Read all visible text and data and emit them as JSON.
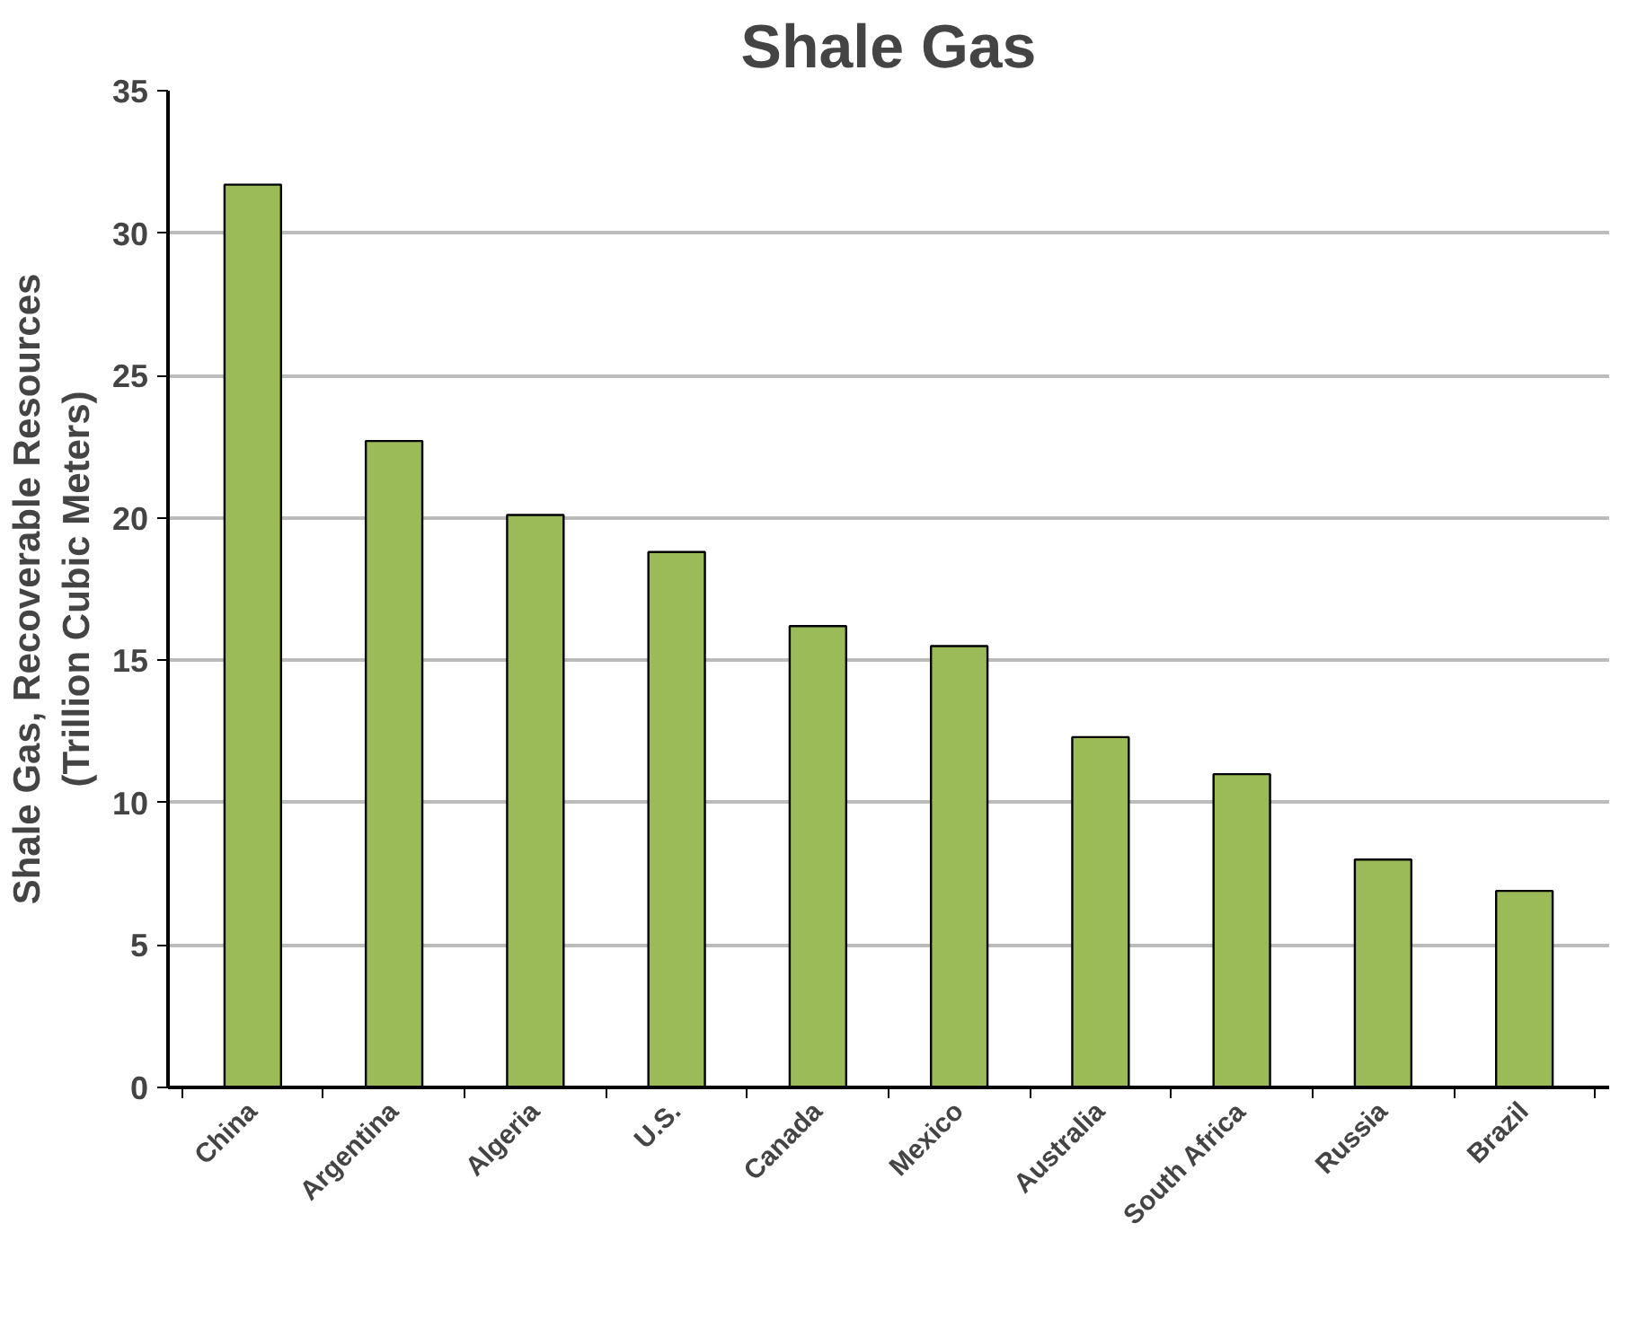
{
  "chart_data": {
    "type": "bar",
    "title": "Shale Gas",
    "ylabel": "Shale Gas, Recoverable Resources\n(Trillion Cubic Meters)",
    "categories": [
      "China",
      "Argentina",
      "Algeria",
      "U.S.",
      "Canada",
      "Mexico",
      "Australia",
      "South Africa",
      "Russia",
      "Brazil"
    ],
    "values": [
      31.7,
      22.7,
      20.1,
      18.8,
      16.2,
      15.5,
      12.3,
      11.0,
      8.0,
      6.9
    ],
    "color": "#9bbb59",
    "ylim": [
      0,
      35
    ],
    "yticks": [
      0,
      5,
      10,
      15,
      20,
      25,
      30,
      35
    ],
    "grid": "y"
  }
}
